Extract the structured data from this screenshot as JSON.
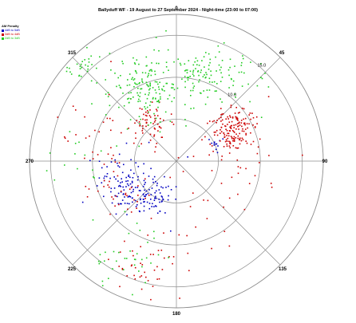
{
  "title": "Ballyduff WF - 19 August to 27 September 2024 - Night-time (23:00 to 07:00)",
  "chart_data": {
    "type": "scatter",
    "coordinate_system": "polar",
    "title": "Ballyduff WF - 19 August to 27 September 2024 - Night-time (23:00 to 07:00)",
    "angle_labels": [
      "0",
      "45",
      "90",
      "135",
      "180",
      "225",
      "270",
      "315"
    ],
    "radial_labels": [
      "10.0",
      "15.0"
    ],
    "r_range": [
      0,
      17.5
    ],
    "grid": true,
    "legend": {
      "title": "AM Penalty",
      "placement": "top-left",
      "entries": [
        {
          "label": "4dB to 5dB",
          "color": "#0000c0"
        },
        {
          "label": "3dB to 4dB",
          "color": "#cc0000"
        },
        {
          "label": "2dB to 3dB",
          "color": "#22cc22"
        }
      ]
    },
    "series": [
      {
        "name": "4dB to 5dB",
        "color": "#0000c0",
        "clusters": [
          {
            "angle_deg": 241,
            "r": 6.2,
            "spread": 1.9,
            "count": 110
          },
          {
            "angle_deg": 214,
            "r": 5.6,
            "spread": 1.3,
            "count": 55
          },
          {
            "angle_deg": 62,
            "r": 5.3,
            "spread": 0.8,
            "count": 12
          },
          {
            "angle_deg": 265,
            "r": 8.5,
            "spread": 1.0,
            "count": 8
          }
        ]
      },
      {
        "name": "3dB to 4dB",
        "color": "#cc0000",
        "clusters": [
          {
            "angle_deg": 60,
            "r": 7.8,
            "spread": 1.3,
            "count": 160
          },
          {
            "angle_deg": 327,
            "r": 5.6,
            "spread": 1.1,
            "count": 60
          },
          {
            "angle_deg": 288,
            "r": 9.4,
            "spread": 3.0,
            "count": 40
          },
          {
            "angle_deg": 197,
            "r": 13.4,
            "spread": 2.2,
            "count": 45
          },
          {
            "angle_deg": 238,
            "r": 7.2,
            "spread": 1.6,
            "count": 30
          },
          {
            "angle_deg": 95,
            "r": 7.5,
            "spread": 3.5,
            "count": 35
          },
          {
            "angle_deg": 175,
            "r": 8.0,
            "spread": 3.0,
            "count": 12
          }
        ]
      },
      {
        "name": "2dB to 3dB",
        "color": "#22cc22",
        "clusters": [
          {
            "angle_deg": 340,
            "r": 9.4,
            "spread": 2.4,
            "count": 170
          },
          {
            "angle_deg": 18,
            "r": 10.6,
            "spread": 1.8,
            "count": 90
          },
          {
            "angle_deg": 315,
            "r": 15.6,
            "spread": 1.2,
            "count": 30
          },
          {
            "angle_deg": 205,
            "r": 13.2,
            "spread": 2.2,
            "count": 40
          },
          {
            "angle_deg": 38,
            "r": 12.6,
            "spread": 1.6,
            "count": 25
          },
          {
            "angle_deg": 270,
            "r": 12.0,
            "spread": 2.0,
            "count": 15
          }
        ]
      }
    ]
  }
}
